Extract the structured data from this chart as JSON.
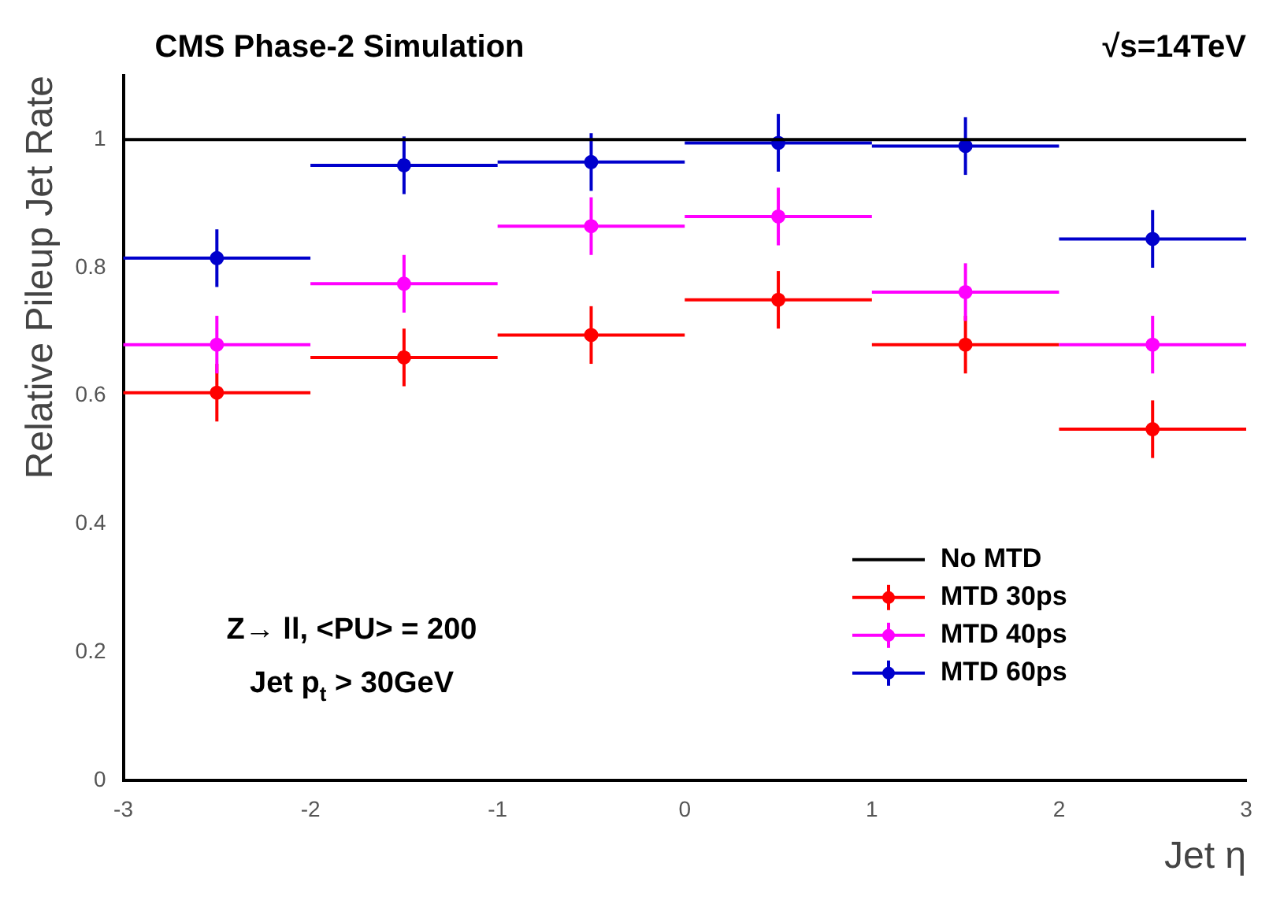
{
  "chart_data": {
    "type": "scatter",
    "title": "CMS Phase-2 Simulation",
    "xlabel": "Jet η",
    "ylabel": "Relative Pileup Jet Rate",
    "annotations": [
      "√s=14TeV",
      "Z→ ll, <PU> = 200",
      "Jet p$_{t}$ > 30GeV"
    ],
    "x": [
      -2.5,
      -1.5,
      -0.5,
      0.5,
      1.5,
      2.5
    ],
    "series": [
      {
        "name": "No MTD",
        "type": "line",
        "color": "#000000",
        "x": [
          -3,
          3
        ],
        "values": [
          1,
          1
        ],
        "marker": "none"
      },
      {
        "name": "MTD 30ps",
        "color": "#ff0000",
        "values": [
          0.605,
          0.66,
          0.695,
          0.75,
          0.68,
          0.548
        ],
        "errors": [
          0.045,
          0.045,
          0.045,
          0.045,
          0.045,
          0.045
        ],
        "xerrors": [
          0.5,
          0.5,
          0.5,
          0.5,
          0.5,
          0.5
        ]
      },
      {
        "name": "MTD 40ps",
        "color": "#ff00ff",
        "values": [
          0.68,
          0.775,
          0.865,
          0.88,
          0.762,
          0.68
        ],
        "errors": [
          0.045,
          0.045,
          0.045,
          0.045,
          0.045,
          0.045
        ],
        "xerrors": [
          0.5,
          0.5,
          0.5,
          0.5,
          0.5,
          0.5
        ]
      },
      {
        "name": "MTD 60ps",
        "color": "#0000cc",
        "values": [
          0.815,
          0.96,
          0.965,
          0.995,
          0.99,
          0.845
        ],
        "errors": [
          0.045,
          0.045,
          0.045,
          0.045,
          0.045,
          0.045
        ],
        "xerrors": [
          0.5,
          0.5,
          0.5,
          0.5,
          0.5,
          0.5
        ]
      }
    ],
    "xlim": [
      -3,
      3
    ],
    "ylim": [
      0,
      1.1
    ],
    "xticks": [
      -3,
      -2,
      -1,
      0,
      1,
      2,
      3
    ],
    "yticks": [
      0,
      0.2,
      0.4,
      0.6,
      0.8,
      1
    ],
    "grid": false,
    "legend": "bottom right",
    "marker": "circle"
  }
}
